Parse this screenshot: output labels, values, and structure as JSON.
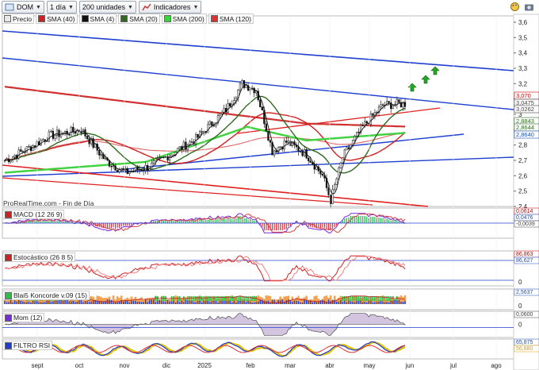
{
  "toolbar": {
    "symbol": "DOM",
    "interval": "1 día",
    "units": "200 unidades",
    "indicators": "Indicadores"
  },
  "legend": [
    {
      "label": "Precio",
      "color": "#e8e8e8"
    },
    {
      "label": "SMA (40)",
      "color": "#d02020"
    },
    {
      "label": "SMA (4)",
      "color": "#111111"
    },
    {
      "label": "SMA (20)",
      "color": "#2e6b1f"
    },
    {
      "label": "SMA (200)",
      "color": "#3fd23f"
    },
    {
      "label": "SMA (120)",
      "color": "#e03030"
    }
  ],
  "credit": "ProRealTime.com - Fin de Día",
  "months": [
    "sept",
    "oct",
    "nov",
    "dic",
    "2025",
    "feb",
    "mar",
    "abr",
    "may",
    "jun",
    "jul",
    "ago"
  ],
  "price_axis": [
    "3,6",
    "3,5",
    "3,4",
    "3,3",
    "3,2",
    "3,1",
    "3",
    "2,9",
    "2,8",
    "2,7",
    "2,6",
    "2,5",
    "2,4"
  ],
  "price_tags": [
    {
      "text": "3,070",
      "color": "#c00000"
    },
    {
      "text": "3,0475",
      "color": "#444444"
    },
    {
      "text": "3,0262",
      "color": "#444444"
    },
    {
      "text": "2,8843",
      "color": "#2e6b1f"
    },
    {
      "text": "2,8644",
      "color": "#2e6b1f"
    },
    {
      "text": "2,8640",
      "color": "#1a4fb4"
    }
  ],
  "panels": [
    {
      "label": "MACD (12 26 9)",
      "axis": [
        "0"
      ],
      "tags": [
        {
          "text": "0,0614",
          "color": "#c00000"
        },
        {
          "text": "0,0476",
          "color": "#1a4fb4"
        },
        {
          "text": "-0,0039",
          "color": "#444444"
        }
      ]
    },
    {
      "label": "Estocástico (26 8 5)",
      "axis": [
        "50",
        "0"
      ],
      "tags": [
        {
          "text": "86,863",
          "color": "#c00000"
        },
        {
          "text": "86,627",
          "color": "#1a4fb4"
        }
      ]
    },
    {
      "label": "Blai5 Koncorde v.09 (15)",
      "axis": [
        "200",
        "0"
      ],
      "tags": [
        {
          "text": "2,5637",
          "color": "#1a4fb4"
        }
      ]
    },
    {
      "label": "Mom (12)",
      "axis": [
        "0"
      ],
      "tags": [
        {
          "text": "0,0600",
          "color": "#444444"
        }
      ]
    },
    {
      "label": "FILTRO RSI",
      "axis": [
        "50"
      ],
      "tags": [
        {
          "text": "65,875",
          "color": "#1a4fb4"
        },
        {
          "text": "56,880",
          "color": "#e0a000"
        }
      ]
    }
  ],
  "chart_data": {
    "type": "candlestick",
    "symbol": "DOM",
    "y_range": [
      2.4,
      3.6
    ],
    "last_close": 3.07,
    "series": [
      {
        "name": "Precio",
        "monthly_approx": {
          "sept": 2.72,
          "oct": 2.82,
          "nov": 2.62,
          "dic": 2.67,
          "2025": 2.8,
          "feb": 3.18,
          "mar": 2.73,
          "abr": 2.5,
          "may": 3.02,
          "jun": 3.07
        }
      },
      {
        "name": "SMA (200)",
        "last": 2.8843
      },
      {
        "name": "SMA (20)",
        "last": 2.8644
      },
      {
        "name": "SMA (40)",
        "last": 3.0262
      },
      {
        "name": "SMA (4)",
        "last": 3.0475
      }
    ],
    "indicators": {
      "MACD (12 26 9)": {
        "values": [
          0.0614,
          0.0476,
          -0.0039
        ]
      },
      "Estocástico (26 8 5)": {
        "values": [
          86.863,
          86.627
        ]
      },
      "Blai5 Koncorde v.09 (15)": {
        "values": [
          2.5637
        ]
      },
      "Mom (12)": {
        "values": [
          0.06
        ]
      },
      "FILTRO RSI": {
        "values": [
          65.875,
          56.88
        ]
      }
    }
  }
}
